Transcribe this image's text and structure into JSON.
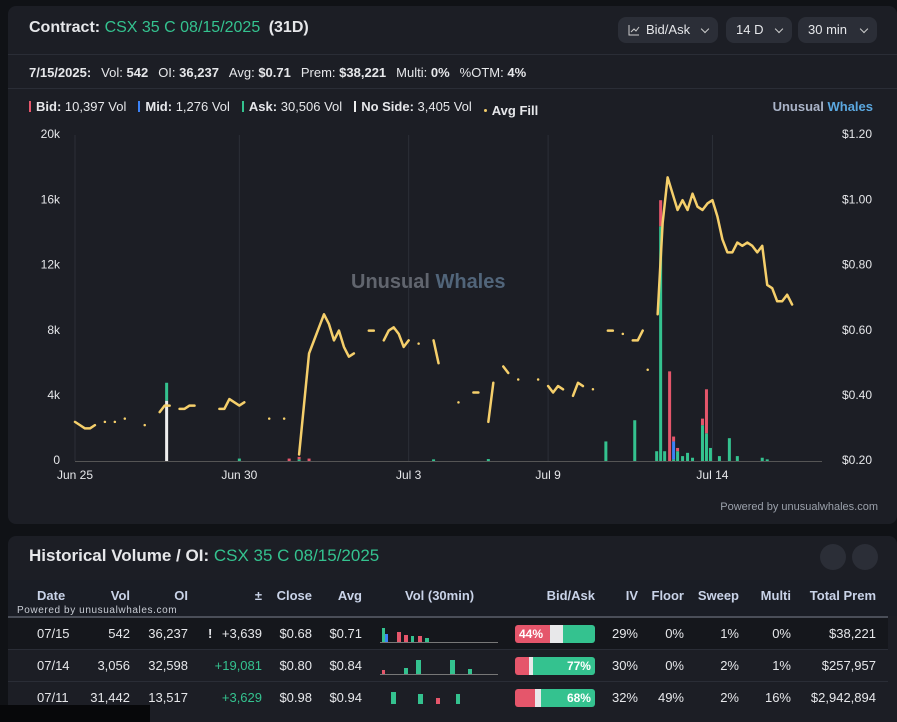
{
  "header": {
    "label": "Contract:",
    "contract": "CSX 35 C 08/15/2025",
    "dte": "(31D)",
    "buttons": [
      "Bid/Ask",
      "14 D",
      "30 min"
    ]
  },
  "stats": [
    {
      "label": "7/15/2025:",
      "value": ""
    },
    {
      "label": "Vol:",
      "value": "542"
    },
    {
      "label": "OI:",
      "value": "36,237"
    },
    {
      "label": "Avg:",
      "value": "$0.71"
    },
    {
      "label": "Prem:",
      "value": "$38,221"
    },
    {
      "label": "Multi:",
      "value": "0%"
    },
    {
      "label": "%OTM:",
      "value": "4%"
    }
  ],
  "brand": {
    "a": "Unusual",
    "b": "Whales"
  },
  "watermark": {
    "a": "Unusual",
    "b": "Whales"
  },
  "powered": "Powered by unusualwhales.com",
  "chart": {
    "type": "bar-line",
    "grid": "x",
    "xlim": [
      0,
      150
    ],
    "xticks": [
      {
        "value": 0,
        "label": "Jun 25"
      },
      {
        "value": 33,
        "label": "Jun 30"
      },
      {
        "value": 67,
        "label": "Jul 3"
      },
      {
        "value": 95,
        "label": "Jul 9"
      },
      {
        "value": 128,
        "label": "Jul 14"
      }
    ],
    "ylim": [
      0,
      20000
    ],
    "yticks": [
      {
        "value": 0,
        "label": "0"
      },
      {
        "value": 4000,
        "label": "4k"
      },
      {
        "value": 8000,
        "label": "8k"
      },
      {
        "value": 12000,
        "label": "12k"
      },
      {
        "value": 16000,
        "label": "16k"
      },
      {
        "value": 20000,
        "label": "20k"
      }
    ],
    "y2lim": [
      0.2,
      1.2
    ],
    "y2ticks": [
      {
        "value": 0.2,
        "label": "$0.20"
      },
      {
        "value": 0.4,
        "label": "$0.40"
      },
      {
        "value": 0.6,
        "label": "$0.60"
      },
      {
        "value": 0.8,
        "label": "$0.80"
      },
      {
        "value": 1.0,
        "label": "$1.00"
      },
      {
        "value": 1.2,
        "label": "$1.20"
      }
    ],
    "bars": {
      "x": [
        18.4,
        33,
        43,
        45,
        47,
        72,
        83,
        106.6,
        112.4,
        116.8,
        117.6,
        118.4,
        119.4,
        120.2,
        121,
        122,
        123,
        124,
        126,
        126.8,
        127.6,
        129.4,
        131.4,
        133,
        138,
        139
      ],
      "series": [
        {
          "name": "Bid:",
          "total": "10,397 Vol",
          "color": "#e5566b",
          "values": [
            0,
            0,
            150,
            150,
            150,
            0,
            0,
            0,
            0,
            0,
            1600,
            0,
            5500,
            300,
            200,
            0,
            0,
            0,
            400,
            2700,
            0,
            0,
            0,
            0,
            0,
            0
          ]
        },
        {
          "name": "Mid:",
          "total": "1,276 Vol",
          "color": "#3b82f6",
          "values": [
            0,
            0,
            0,
            0,
            0,
            0,
            0,
            0,
            0,
            0,
            0,
            0,
            0,
            1100,
            0,
            0,
            0,
            0,
            0,
            0,
            0,
            0,
            0,
            0,
            0,
            0
          ]
        },
        {
          "name": "Ask:",
          "total": "30,506 Vol",
          "color": "#34c28f",
          "values": [
            1100,
            150,
            0,
            100,
            0,
            100,
            120,
            1200,
            2500,
            600,
            14400,
            600,
            0,
            100,
            600,
            300,
            500,
            200,
            2200,
            1700,
            800,
            300,
            1400,
            300,
            200,
            100
          ]
        },
        {
          "name": "No Side:",
          "total": "3,405 Vol",
          "color": "#eeeeee",
          "values": [
            3700,
            0,
            0,
            0,
            0,
            0,
            0,
            0,
            0,
            0,
            0,
            0,
            0,
            0,
            0,
            0,
            0,
            0,
            0,
            0,
            0,
            0,
            0,
            0,
            0,
            0
          ]
        }
      ]
    },
    "line": {
      "name": "Avg Fill",
      "color": "#f5cf6b",
      "axis": "y2",
      "x": [
        0,
        1,
        2,
        3,
        4,
        null,
        6,
        null,
        8,
        null,
        10,
        null,
        14,
        null,
        17,
        18,
        19,
        null,
        21,
        22,
        23,
        24,
        null,
        29,
        30,
        31,
        32,
        33,
        34,
        null,
        39,
        null,
        42,
        null,
        45,
        47,
        48,
        49,
        50,
        51,
        52,
        53,
        54,
        55,
        56,
        null,
        59,
        60,
        null,
        62,
        63,
        64,
        65,
        66,
        67,
        null,
        69,
        null,
        72,
        73,
        null,
        77,
        null,
        80,
        81,
        null,
        83,
        84,
        null,
        86,
        87,
        null,
        89,
        null,
        93,
        null,
        95,
        96,
        97,
        98,
        null,
        100,
        101,
        102,
        null,
        104,
        null,
        107,
        108,
        null,
        110,
        null,
        112,
        113,
        114,
        null,
        115,
        null,
        117,
        118,
        119,
        120,
        121,
        122,
        123,
        124,
        125,
        126,
        127,
        128,
        129,
        130,
        131,
        132,
        133,
        134,
        135,
        136,
        137,
        138,
        139,
        140,
        141,
        142,
        143,
        144
      ],
      "values": [
        0.32,
        0.31,
        0.3,
        0.3,
        0.31,
        null,
        0.32,
        null,
        0.32,
        null,
        0.33,
        null,
        0.31,
        null,
        0.35,
        0.37,
        0.37,
        null,
        0.36,
        0.36,
        0.37,
        0.37,
        null,
        0.36,
        0.36,
        0.39,
        0.38,
        0.37,
        0.38,
        null,
        0.33,
        null,
        0.33,
        null,
        0.22,
        0.53,
        0.57,
        0.61,
        0.65,
        0.62,
        0.57,
        0.6,
        0.55,
        0.52,
        0.53,
        null,
        0.6,
        0.6,
        null,
        0.57,
        0.6,
        0.61,
        0.59,
        0.55,
        0.57,
        null,
        0.56,
        null,
        0.57,
        0.5,
        null,
        0.38,
        null,
        0.41,
        0.41,
        null,
        0.32,
        0.44,
        null,
        0.49,
        0.47,
        null,
        0.45,
        null,
        0.45,
        null,
        0.43,
        0.41,
        0.43,
        0.42,
        null,
        0.4,
        0.44,
        0.43,
        null,
        0.42,
        null,
        0.6,
        0.6,
        null,
        0.59,
        null,
        0.57,
        0.57,
        0.6,
        null,
        0.48,
        null,
        0.65,
        0.93,
        1.07,
        1.02,
        0.97,
        1.0,
        0.97,
        1.02,
        0.98,
        0.97,
        0.99,
        1.0,
        0.95,
        0.88,
        0.84,
        0.84,
        0.87,
        0.86,
        0.87,
        0.86,
        0.84,
        0.86,
        0.74,
        0.73,
        0.69,
        0.69,
        0.71,
        0.68
      ]
    }
  },
  "history": {
    "label": "Historical Volume / OI:",
    "contract": "CSX 35 C 08/15/2025",
    "powered": "Powered by unusualwhales.com",
    "columns": [
      "Date",
      "Vol",
      "OI",
      "±",
      "Close",
      "Avg",
      "Vol (30min)",
      "Bid/Ask",
      "IV",
      "Floor",
      "Sweep",
      "Multi",
      "Total Prem"
    ],
    "rows": [
      {
        "date": "07/15",
        "vol": "542",
        "oi": "36,237",
        "flag": "!",
        "change": "+3,639",
        "close": "$0.68",
        "avg": "$0.71",
        "bid_ask": [
          44,
          16,
          40
        ],
        "bid_ask_label": "44%",
        "iv": "29%",
        "floor": "0%",
        "sweep": "1%",
        "multi": "0%",
        "prem": "$38,221"
      },
      {
        "date": "07/14",
        "vol": "3,056",
        "oi": "32,598",
        "change": "+19,081",
        "close": "$0.80",
        "avg": "$0.84",
        "bid_ask": [
          18,
          5,
          77
        ],
        "bid_ask_label": "77%",
        "iv": "30%",
        "floor": "0%",
        "sweep": "2%",
        "multi": "1%",
        "prem": "$257,957"
      },
      {
        "date": "07/11",
        "vol": "31,442",
        "oi": "13,517",
        "change": "+3,629",
        "close": "$0.98",
        "avg": "$0.94",
        "bid_ask": [
          25,
          7,
          68
        ],
        "bid_ask_label": "68%",
        "iv": "32%",
        "floor": "49%",
        "sweep": "2%",
        "multi": "16%",
        "prem": "$2,942,894"
      }
    ]
  }
}
